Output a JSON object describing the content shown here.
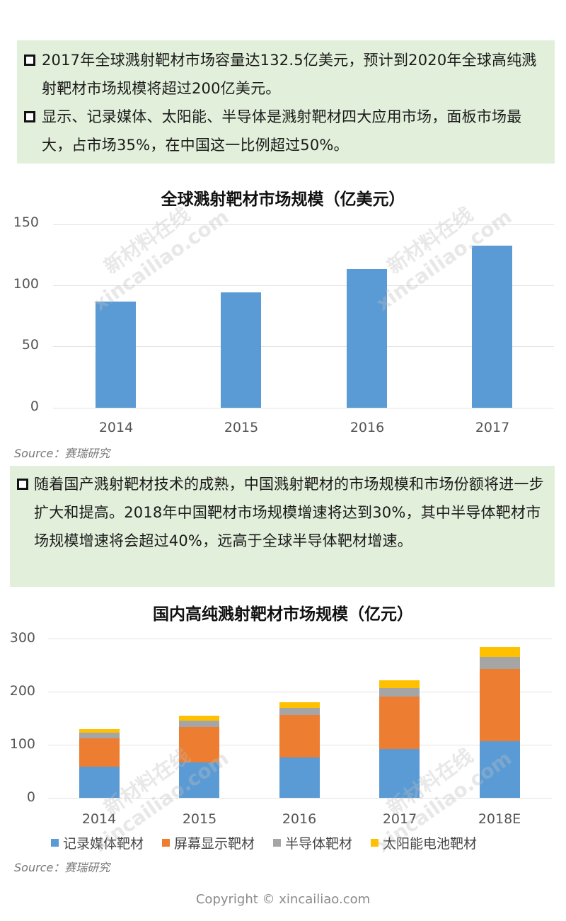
{
  "notes_top": {
    "items": [
      {
        "text": "2017年全球溅射靶材市场容量达132.5亿美元，预计到2020年全球高纯溅射靶材市场规模将超过200亿美元。"
      },
      {
        "text": "显示、记录媒体、太阳能、半导体是溅射靶材四大应用市场，面板市场最大，占市场35%，在中国这一比例超过50%。"
      }
    ]
  },
  "notes_middle": {
    "items": [
      {
        "text": "随着国产溅射靶材技术的成熟，中国溅射靶材的市场规模和市场份额将进一步扩大和提高。2018年中国靶材市场规模增速将达到30%，其中半导体靶材市场规模增速将会超过40%，远高于全球半导体靶材增速。"
      }
    ]
  },
  "watermark": {
    "line1": "新材料在线",
    "line2": "xincailiao.com"
  },
  "footer": {
    "copyright": "Copyright © xincailiao.com"
  },
  "colors": {
    "note_bg": "#e2efda",
    "blue": "#5b9bd5",
    "orange": "#ed7d31",
    "gray": "#a5a5a5",
    "yellow": "#ffc000"
  },
  "chart_data": [
    {
      "type": "bar",
      "title": "全球溅射靶材市场规模（亿美元）",
      "xlabel": "",
      "ylabel": "",
      "categories": [
        "2014",
        "2015",
        "2016",
        "2017"
      ],
      "values": [
        86.6,
        94.2,
        113.4,
        132.5
      ],
      "ylim": [
        0,
        150
      ],
      "yticks": [
        "0",
        "50",
        "100",
        "150"
      ],
      "grid": true,
      "legend": null,
      "source": "Source：赛瑞研究"
    },
    {
      "type": "bar",
      "stacked": true,
      "title": "国内高纯溅射靶材市场规模（亿元）",
      "xlabel": "",
      "ylabel": "",
      "categories": [
        "2014",
        "2015",
        "2016",
        "2017",
        "2018E"
      ],
      "series": [
        {
          "name": "记录媒体靶材",
          "color": "#5b9bd5",
          "values": [
            59,
            66.5,
            76.6,
            91.7,
            107
          ]
        },
        {
          "name": "屏幕显示靶材",
          "color": "#ed7d31",
          "values": [
            53,
            67.5,
            78.9,
            99.3,
            136
          ]
        },
        {
          "name": "半导体靶材",
          "color": "#a5a5a5",
          "values": [
            11,
            12,
            13.5,
            15.5,
            23
          ]
        },
        {
          "name": "太阳能电池靶材",
          "color": "#ffc000",
          "values": [
            6,
            9,
            11,
            15,
            18
          ]
        }
      ],
      "ylim": [
        0,
        300
      ],
      "yticks": [
        "0",
        "100",
        "200",
        "300"
      ],
      "grid": true,
      "legend_position": "bottom",
      "source": "Source：赛瑞研究"
    }
  ]
}
